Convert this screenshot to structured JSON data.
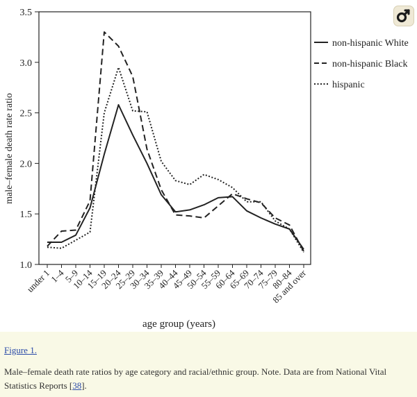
{
  "figure_link": "Figure 1.",
  "caption": {
    "text_before": "Male–female death rate ratios by age category and racial/ethnic group. Note. Data are from National Vital Statistics Reports [",
    "ref": "38",
    "text_after": "]."
  },
  "badge_icon": "female-symbol-icon",
  "colors": {
    "background": "#f9f9e6",
    "link": "#2b4ba8",
    "line": "#222222",
    "badge": "#efe9d6"
  },
  "chart_data": {
    "type": "line",
    "xlabel": "age group (years)",
    "ylabel": "male–female death rate ratio",
    "ylim": [
      1.0,
      3.5
    ],
    "yticks": [
      "1.0",
      "1.5",
      "2.0",
      "2.5",
      "3.0",
      "3.5"
    ],
    "grid": false,
    "legend_position": "right",
    "categories": [
      "under 1",
      "1–4",
      "5–9",
      "10–14",
      "15–19",
      "20–24",
      "25–29",
      "30–34",
      "35–39",
      "40–44",
      "45–49",
      "50–54",
      "55–59",
      "60–64",
      "65–69",
      "70–74",
      "75–79",
      "80–84",
      "85 and over"
    ],
    "series": [
      {
        "name": "non-hispanic White",
        "style": "solid",
        "values": [
          1.22,
          1.22,
          1.29,
          1.56,
          2.09,
          2.58,
          2.28,
          2.0,
          1.69,
          1.52,
          1.54,
          1.59,
          1.66,
          1.67,
          1.53,
          1.46,
          1.4,
          1.35,
          1.15
        ]
      },
      {
        "name": "non-hispanic Black",
        "style": "dashed",
        "values": [
          1.18,
          1.33,
          1.34,
          1.63,
          3.3,
          3.16,
          2.86,
          2.14,
          1.74,
          1.49,
          1.48,
          1.46,
          1.58,
          1.7,
          1.65,
          1.61,
          1.46,
          1.39,
          1.13
        ]
      },
      {
        "name": "hispanic",
        "style": "dotted",
        "values": [
          1.17,
          1.16,
          1.24,
          1.32,
          2.5,
          2.95,
          2.52,
          2.51,
          2.02,
          1.83,
          1.79,
          1.89,
          1.84,
          1.76,
          1.62,
          1.62,
          1.43,
          1.35,
          1.12
        ]
      }
    ]
  }
}
